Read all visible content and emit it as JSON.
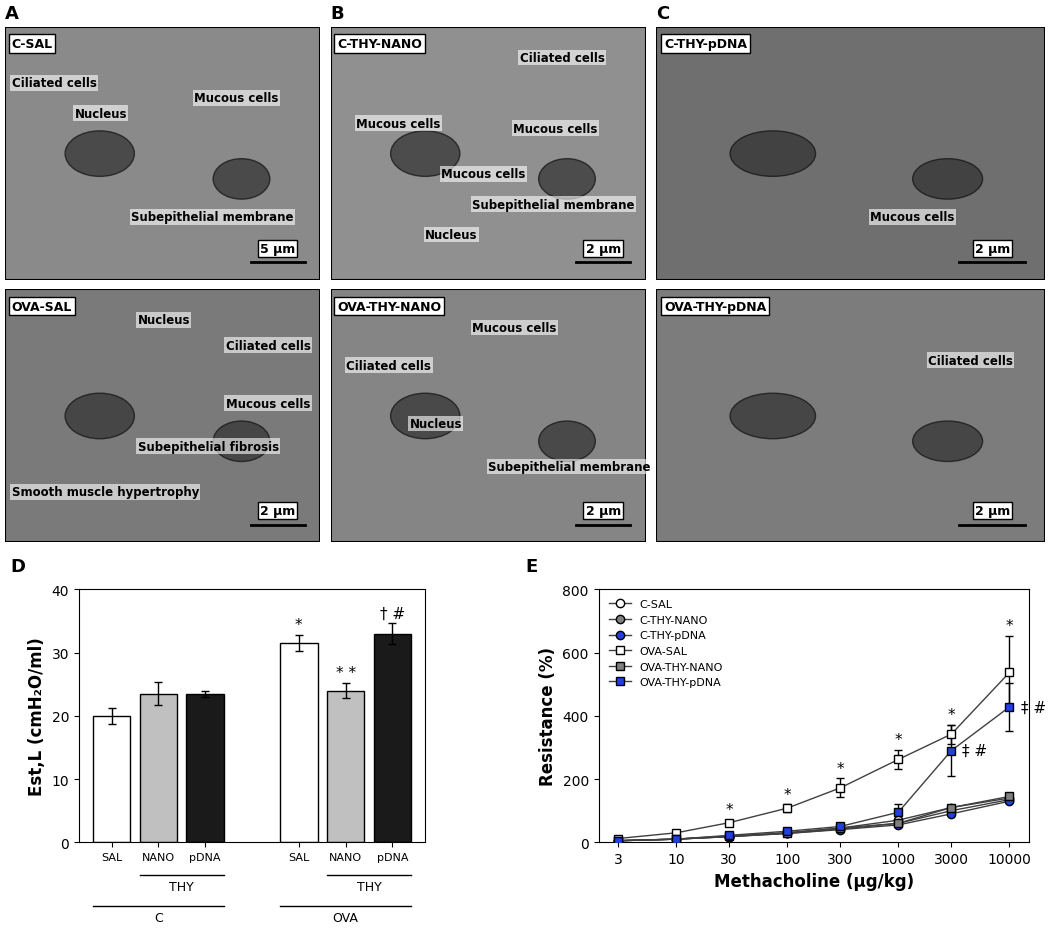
{
  "panel_letters": [
    "A",
    "B",
    "C",
    "D",
    "E"
  ],
  "images": [
    {
      "label": "C-SAL",
      "annotations": [
        "Ciliated cells",
        "Nucleus",
        "Mucous cells",
        "Subepithelial membrane"
      ],
      "scale_bar": "5 µm"
    },
    {
      "label": "OVA-SAL",
      "annotations": [
        "Nucleus",
        "Ciliated cells",
        "Mucous cells",
        "Subepithelial fibrosis",
        "Smooth muscle hypertrophy"
      ],
      "scale_bar": "2 µm"
    },
    {
      "label": "C-THY-NANO",
      "annotations": [
        "Ciliated cells",
        "Mucous cells",
        "Mucous cells",
        "Mucous cells",
        "Subepithelial membrane",
        "Nucleus"
      ],
      "scale_bar": "2 µm"
    },
    {
      "label": "OVA-THY-NANO",
      "annotations": [
        "Mucous cells",
        "Ciliated cells",
        "Nucleus",
        "Subepithelial membrane"
      ],
      "scale_bar": "2 µm"
    },
    {
      "label": "C-THY-pDNA",
      "annotations": [
        "Mucous cells"
      ],
      "scale_bar": "2 µm"
    },
    {
      "label": "OVA-THY-pDNA",
      "annotations": [
        "Ciliated cells"
      ],
      "scale_bar": "2 µm"
    }
  ],
  "chart_data": [
    {
      "type": "bar",
      "ylabel": "Est,L (cmH₂O/ml)",
      "ylim": [
        0,
        40
      ],
      "yticks": [
        0,
        10,
        20,
        30,
        40
      ],
      "colors": [
        "#ffffff",
        "#c0c0c0",
        "#1a1a1a"
      ],
      "groups": [
        {
          "label": "C",
          "sublabel": "THY",
          "categories": [
            "SAL",
            "NANO",
            "pDNA"
          ],
          "values": [
            20,
            23.5,
            23.4
          ],
          "errors": [
            1.3,
            1.8,
            0.5
          ],
          "annotations": [
            null,
            null,
            null
          ]
        },
        {
          "label": "OVA",
          "sublabel": "THY",
          "categories": [
            "SAL",
            "NANO",
            "pDNA"
          ],
          "values": [
            31.5,
            24,
            33
          ],
          "errors": [
            1.2,
            1.2,
            1.6
          ],
          "annotations": [
            "*",
            "* *",
            "† #"
          ]
        }
      ]
    },
    {
      "type": "line",
      "xlabel": "Methacholine (µg/kg)",
      "ylabel": "Resistance (%)",
      "log": "x",
      "x": [
        3,
        10,
        30,
        100,
        300,
        1000,
        3000,
        10000
      ],
      "xlim": [
        2,
        15000
      ],
      "xticks": [
        3,
        10,
        30,
        100,
        300,
        1000,
        3000,
        10000
      ],
      "ylim": [
        0,
        800
      ],
      "yticks": [
        0,
        200,
        400,
        600,
        800
      ],
      "legend": "upper left",
      "series": [
        {
          "name": "C-SAL",
          "color": "#ffffff",
          "marker": "circle",
          "values": [
            5,
            10,
            18,
            30,
            45,
            70,
            110,
            140
          ]
        },
        {
          "name": "C-THY-NANO",
          "color": "#808080",
          "marker": "circle",
          "values": [
            5,
            10,
            18,
            28,
            42,
            60,
            100,
            135
          ]
        },
        {
          "name": "C-THY-pDNA",
          "color": "#2040e0",
          "marker": "circle",
          "values": [
            5,
            10,
            18,
            28,
            40,
            55,
            90,
            130
          ]
        },
        {
          "name": "OVA-SAL",
          "color": "#ffffff",
          "marker": "square",
          "values": [
            12,
            30,
            62,
            108,
            172,
            262,
            342,
            537
          ],
          "errors": [
            3,
            5,
            10,
            12,
            30,
            30,
            30,
            115
          ],
          "annotations": [
            null,
            null,
            "*",
            "*",
            "*",
            "*",
            "*",
            "*"
          ]
        },
        {
          "name": "OVA-THY-NANO",
          "color": "#808080",
          "marker": "square",
          "values": [
            5,
            10,
            20,
            30,
            45,
            60,
            110,
            145
          ]
        },
        {
          "name": "OVA-THY-pDNA",
          "color": "#2040e0",
          "marker": "square",
          "values": [
            5,
            10,
            22,
            35,
            50,
            95,
            290,
            428
          ],
          "errors": [
            null,
            null,
            null,
            null,
            null,
            25,
            80,
            75
          ],
          "annotations": [
            null,
            null,
            null,
            null,
            null,
            null,
            "‡ #",
            "‡ #"
          ]
        }
      ]
    }
  ]
}
